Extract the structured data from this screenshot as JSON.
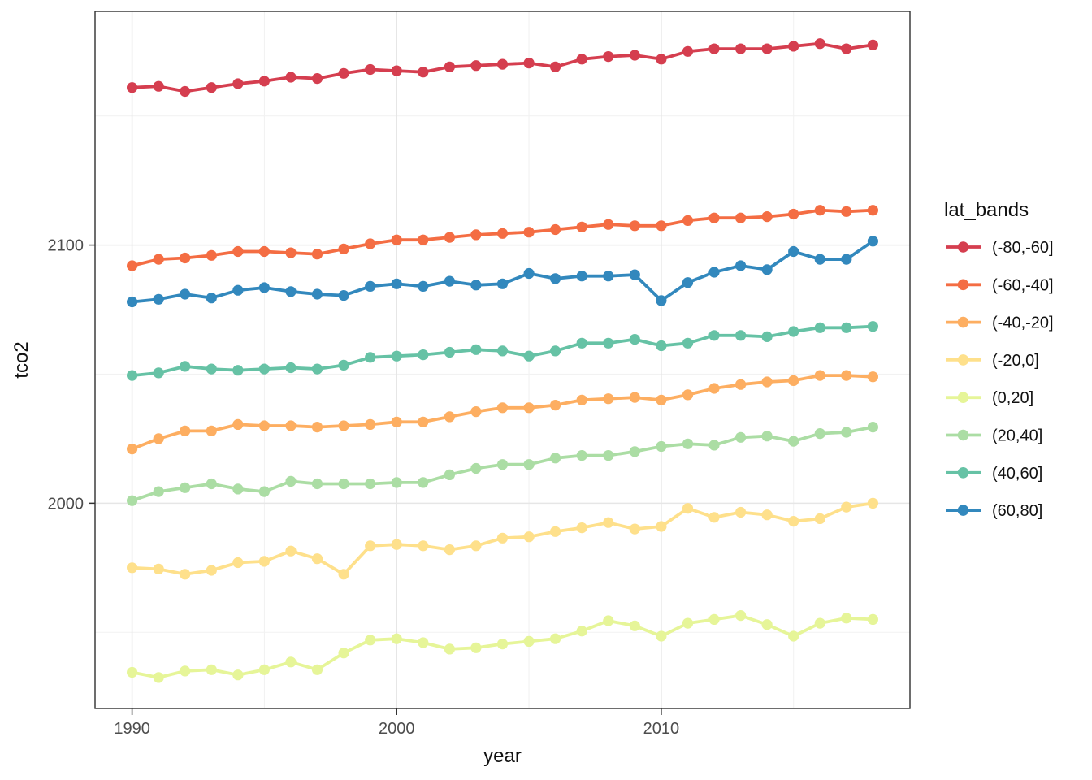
{
  "theme": {
    "background": "#ffffff",
    "panel_background": "#ffffff",
    "panel_border": "#2f2f2f",
    "grid_major": "#e6e6e6",
    "grid_minor": "#f2f2f2",
    "tick_color": "#333333",
    "tick_label_color": "#4d4d4d",
    "title_color": "#111111"
  },
  "chart_data": {
    "type": "line",
    "title": "",
    "xlabel": "year",
    "ylabel": "tco2",
    "legend_title": "lat_bands",
    "legend_position": "right",
    "grid": true,
    "x": [
      1990,
      1991,
      1992,
      1993,
      1994,
      1995,
      1996,
      1997,
      1998,
      1999,
      2000,
      2001,
      2002,
      2003,
      2004,
      2005,
      2006,
      2007,
      2008,
      2009,
      2010,
      2011,
      2012,
      2013,
      2014,
      2015,
      2016,
      2017,
      2018
    ],
    "x_axis": {
      "ticks": [
        1990,
        2000,
        2010
      ],
      "minor_ticks": [
        1995,
        2005,
        2015
      ],
      "range": [
        1988.6,
        2019.4
      ]
    },
    "y_axis": {
      "ticks": [
        2000,
        2100
      ],
      "minor_ticks": [
        1950,
        2050,
        2150
      ],
      "range": [
        1920.5,
        2190.5
      ]
    },
    "series": [
      {
        "name": "(-80,-60]",
        "color": "#d53e4f",
        "values": [
          2161,
          2161.5,
          2159.5,
          2161,
          2162.5,
          2163.5,
          2165,
          2164.5,
          2166.5,
          2168,
          2167.5,
          2167,
          2169,
          2169.5,
          2170,
          2170.5,
          2169,
          2172,
          2173,
          2173.5,
          2172,
          2175,
          2176,
          2176,
          2176,
          2177,
          2178,
          2176,
          2177.5
        ]
      },
      {
        "name": "(-60,-40]",
        "color": "#f46d43",
        "values": [
          2092,
          2094.5,
          2095,
          2096,
          2097.5,
          2097.5,
          2097,
          2096.5,
          2098.5,
          2100.5,
          2102,
          2102,
          2103,
          2104,
          2104.5,
          2105,
          2106,
          2107,
          2108,
          2107.5,
          2107.5,
          2109.5,
          2110.5,
          2110.5,
          2111,
          2112,
          2113.5,
          2113,
          2113.5
        ]
      },
      {
        "name": "(-40,-20]",
        "color": "#fdae61",
        "values": [
          2021,
          2025,
          2028,
          2028,
          2030.5,
          2030,
          2030,
          2029.5,
          2030,
          2030.5,
          2031.5,
          2031.5,
          2033.5,
          2035.5,
          2037,
          2037,
          2038,
          2040,
          2040.5,
          2041,
          2040,
          2042,
          2044.5,
          2046,
          2047,
          2047.5,
          2049.5,
          2049.5,
          2049
        ]
      },
      {
        "name": "(-20,0]",
        "color": "#fee08b",
        "values": [
          1975,
          1974.5,
          1972.5,
          1974,
          1977,
          1977.5,
          1981.5,
          1978.5,
          1972.5,
          1983.5,
          1984,
          1983.5,
          1982,
          1983.5,
          1986.5,
          1987,
          1989,
          1990.5,
          1992.5,
          1990,
          1991,
          1998,
          1994.5,
          1996.5,
          1995.5,
          1993,
          1994,
          1998.5,
          2000
        ]
      },
      {
        "name": "(0,20]",
        "color": "#e6f598",
        "values": [
          1934.5,
          1932.5,
          1935,
          1935.5,
          1933.5,
          1935.5,
          1938.5,
          1935.5,
          1942,
          1947,
          1947.5,
          1946,
          1943.5,
          1944,
          1945.5,
          1946.5,
          1947.5,
          1950.5,
          1954.5,
          1952.5,
          1948.5,
          1953.5,
          1955,
          1956.5,
          1953,
          1948.5,
          1953.5,
          1955.5,
          1955
        ]
      },
      {
        "name": "(20,40]",
        "color": "#abdda4",
        "values": [
          2001,
          2004.5,
          2006,
          2007.5,
          2005.5,
          2004.5,
          2008.5,
          2007.5,
          2007.5,
          2007.5,
          2008,
          2008,
          2011,
          2013.5,
          2015,
          2015,
          2017.5,
          2018.5,
          2018.5,
          2020,
          2022,
          2023,
          2022.5,
          2025.5,
          2026,
          2024,
          2027,
          2027.5,
          2029.5
        ]
      },
      {
        "name": "(40,60]",
        "color": "#66c2a5",
        "values": [
          2049.5,
          2050.5,
          2053,
          2052,
          2051.5,
          2052,
          2052.5,
          2052,
          2053.5,
          2056.5,
          2057,
          2057.5,
          2058.5,
          2059.5,
          2059,
          2057,
          2059,
          2062,
          2062,
          2063.5,
          2061,
          2062,
          2065,
          2065,
          2064.5,
          2066.5,
          2068,
          2068,
          2068.5
        ]
      },
      {
        "name": "(60,80]",
        "color": "#3288bd",
        "values": [
          2078,
          2079,
          2081,
          2079.5,
          2082.5,
          2083.5,
          2082,
          2081,
          2080.5,
          2084,
          2085,
          2084,
          2086,
          2084.5,
          2085,
          2089,
          2087,
          2088,
          2088,
          2088.5,
          2078.5,
          2085.5,
          2089.5,
          2092,
          2090.5,
          2097.5,
          2094.5,
          2094.5,
          2101.5
        ]
      }
    ]
  }
}
